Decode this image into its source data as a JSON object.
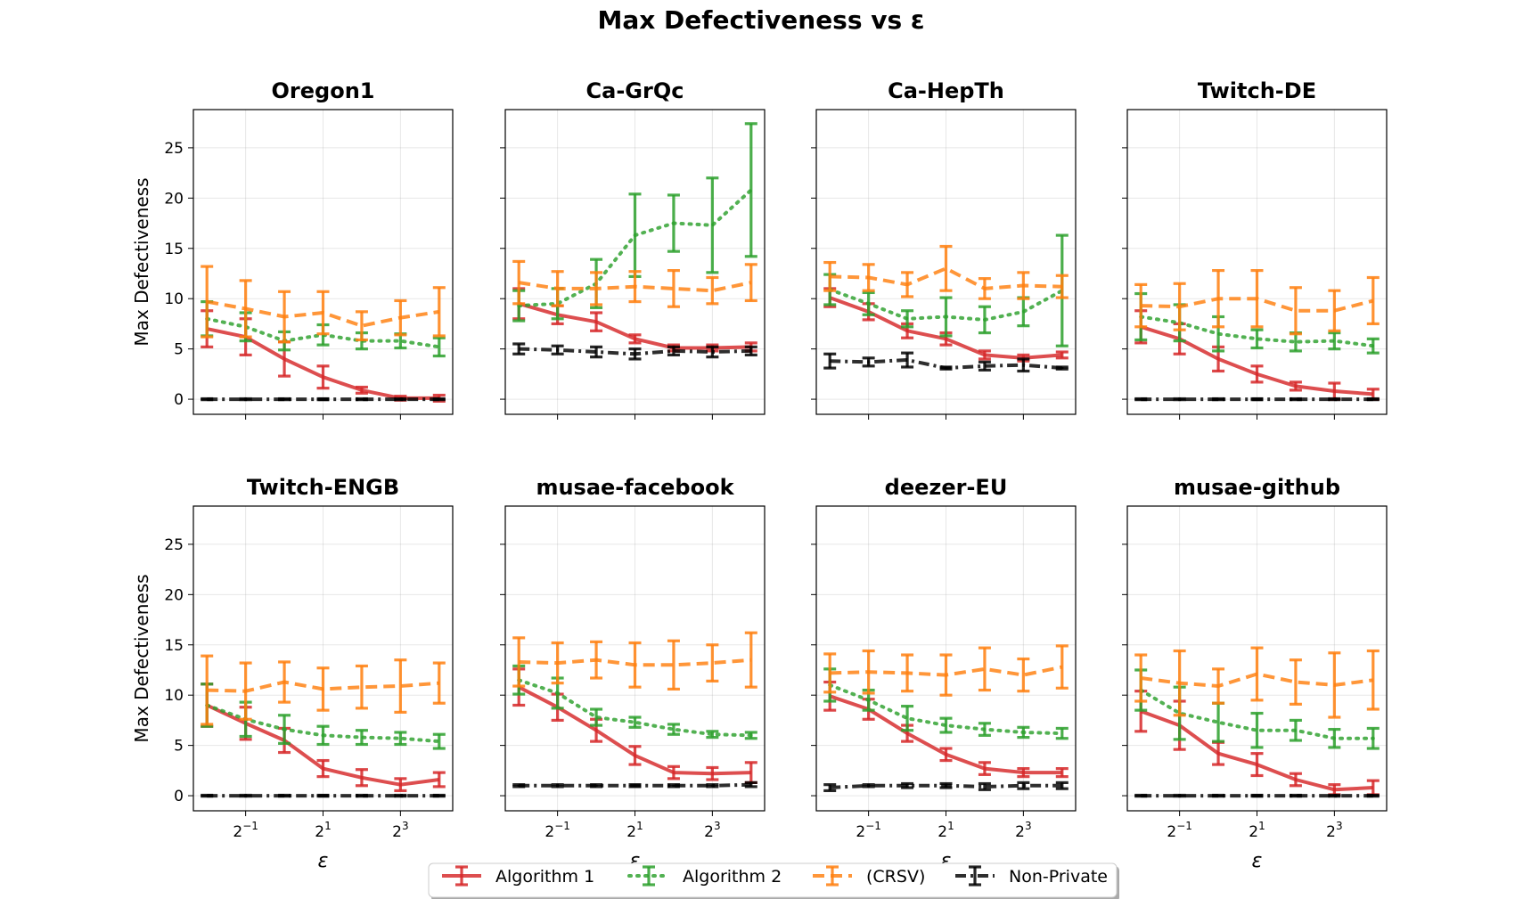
{
  "figure_title": "Max Defectiveness vs ε",
  "chart_data": {
    "type": "line",
    "title": "Max Defectiveness vs ε",
    "xlabel": "ε",
    "ylabel": "Max Defectiveness",
    "x": [
      0.25,
      0.5,
      1,
      2,
      4,
      8,
      16
    ],
    "x_scale": "log2",
    "xticks": [
      {
        "base": "2",
        "exp": "−1",
        "value": 0.5
      },
      {
        "base": "2",
        "exp": "1",
        "value": 2
      },
      {
        "base": "2",
        "exp": "3",
        "value": 8
      }
    ],
    "yticks": [
      "0",
      "5",
      "10",
      "15",
      "20",
      "25"
    ],
    "ylim": [
      -1.5,
      28.8
    ],
    "grid": true,
    "legend_position": "bottom-center",
    "series_styles": [
      {
        "name": "Algorithm 1",
        "color": "#d62728",
        "dash": ""
      },
      {
        "name": "Algorithm 2",
        "color": "#2ca02c",
        "dash": "dot"
      },
      {
        "name": "(CRSV)",
        "color": "#ff7f0e",
        "dash": "dash"
      },
      {
        "name": "Non-Private",
        "color": "#000000",
        "dash": "dashdot"
      }
    ],
    "panels": [
      {
        "title": "Oregon1",
        "series": [
          {
            "name": "Algorithm 1",
            "values": [
              7.0,
              6.2,
              4.0,
              2.2,
              0.9,
              0.1,
              0.1
            ],
            "err": [
              1.8,
              1.8,
              1.7,
              1.1,
              0.3,
              0.2,
              0.3
            ]
          },
          {
            "name": "Algorithm 2",
            "values": [
              8.0,
              7.2,
              5.8,
              6.4,
              5.8,
              5.8,
              5.2
            ],
            "err": [
              1.7,
              1.4,
              0.9,
              1.0,
              0.8,
              0.7,
              0.9
            ]
          },
          {
            "name": "(CRSV)",
            "values": [
              9.7,
              9.0,
              8.2,
              8.6,
              7.3,
              8.1,
              8.7
            ],
            "err": [
              3.5,
              2.8,
              2.5,
              2.1,
              1.4,
              1.7,
              2.4
            ]
          },
          {
            "name": "Non-Private",
            "values": [
              0,
              0,
              0,
              0,
              0,
              0,
              0
            ],
            "err": [
              0.05,
              0.05,
              0.05,
              0.05,
              0.05,
              0.05,
              0.05
            ]
          }
        ]
      },
      {
        "title": "Ca-GrQc",
        "series": [
          {
            "name": "Algorithm 1",
            "values": [
              9.5,
              8.4,
              7.7,
              6.0,
              5.1,
              5.1,
              5.2
            ],
            "err": [
              1.5,
              0.9,
              0.9,
              0.4,
              0.3,
              0.3,
              0.4
            ]
          },
          {
            "name": "Algorithm 2",
            "values": [
              9.3,
              9.5,
              11.5,
              16.3,
              17.5,
              17.3,
              20.8
            ],
            "err": [
              1.5,
              1.5,
              2.4,
              4.1,
              2.8,
              4.7,
              6.6
            ]
          },
          {
            "name": "(CRSV)",
            "values": [
              11.6,
              11.0,
              11.0,
              11.2,
              11.0,
              10.8,
              11.6
            ],
            "err": [
              2.1,
              1.7,
              1.6,
              1.5,
              1.8,
              1.3,
              1.8
            ]
          },
          {
            "name": "Non-Private",
            "values": [
              5.0,
              4.9,
              4.7,
              4.5,
              4.8,
              4.7,
              4.8
            ],
            "err": [
              0.5,
              0.4,
              0.5,
              0.5,
              0.4,
              0.5,
              0.4
            ]
          }
        ]
      },
      {
        "title": "Ca-HepTh",
        "series": [
          {
            "name": "Algorithm 1",
            "values": [
              10.1,
              8.7,
              6.8,
              6.0,
              4.4,
              4.1,
              4.4
            ],
            "err": [
              0.9,
              0.8,
              0.7,
              0.6,
              0.4,
              0.3,
              0.3
            ]
          },
          {
            "name": "Algorithm 2",
            "values": [
              10.9,
              9.5,
              8.0,
              8.2,
              7.9,
              8.7,
              10.8
            ],
            "err": [
              1.5,
              1.1,
              0.8,
              1.9,
              1.3,
              1.4,
              5.5
            ]
          },
          {
            "name": "(CRSV)",
            "values": [
              12.2,
              12.1,
              11.4,
              13.0,
              11.0,
              11.3,
              11.2
            ],
            "err": [
              1.4,
              1.3,
              1.2,
              2.2,
              1.0,
              1.3,
              1.1
            ]
          },
          {
            "name": "Non-Private",
            "values": [
              3.8,
              3.7,
              3.9,
              3.1,
              3.3,
              3.4,
              3.1
            ],
            "err": [
              0.7,
              0.4,
              0.7,
              0.1,
              0.4,
              0.6,
              0.1
            ]
          }
        ]
      },
      {
        "title": "Twitch-DE",
        "series": [
          {
            "name": "Algorithm 1",
            "values": [
              7.2,
              6.0,
              4.0,
              2.5,
              1.3,
              0.8,
              0.5
            ],
            "err": [
              1.6,
              1.5,
              1.2,
              0.8,
              0.4,
              0.8,
              0.5
            ]
          },
          {
            "name": "Algorithm 2",
            "values": [
              8.2,
              7.6,
              6.5,
              6.0,
              5.7,
              5.8,
              5.3
            ],
            "err": [
              2.3,
              1.8,
              1.7,
              0.9,
              0.9,
              0.8,
              0.7
            ]
          },
          {
            "name": "(CRSV)",
            "values": [
              9.3,
              9.2,
              10.0,
              10.0,
              8.8,
              8.8,
              9.8
            ],
            "err": [
              2.1,
              2.3,
              2.8,
              2.8,
              2.3,
              2.0,
              2.3
            ]
          },
          {
            "name": "Non-Private",
            "values": [
              0,
              0,
              0,
              0,
              0,
              0,
              0
            ],
            "err": [
              0.05,
              0.05,
              0.05,
              0.05,
              0.05,
              0.05,
              0.05
            ]
          }
        ]
      },
      {
        "title": "Twitch-ENGB",
        "series": [
          {
            "name": "Algorithm 1",
            "values": [
              9.0,
              7.2,
              5.5,
              2.7,
              1.8,
              1.1,
              1.6
            ],
            "err": [
              2.1,
              1.6,
              1.2,
              0.8,
              0.8,
              0.6,
              0.7
            ]
          },
          {
            "name": "Algorithm 2",
            "values": [
              9.0,
              7.6,
              6.6,
              6.0,
              5.8,
              5.7,
              5.4
            ],
            "err": [
              2.1,
              1.7,
              1.4,
              0.9,
              0.7,
              0.6,
              0.7
            ]
          },
          {
            "name": "(CRSV)",
            "values": [
              10.5,
              10.4,
              11.3,
              10.6,
              10.8,
              10.9,
              11.2
            ],
            "err": [
              3.4,
              2.8,
              2.0,
              2.1,
              2.1,
              2.6,
              2.0
            ]
          },
          {
            "name": "Non-Private",
            "values": [
              0,
              0,
              0,
              0,
              0,
              0,
              0
            ],
            "err": [
              0.05,
              0.05,
              0.05,
              0.05,
              0.05,
              0.05,
              0.05
            ]
          }
        ]
      },
      {
        "title": "musae-facebook",
        "series": [
          {
            "name": "Algorithm 1",
            "values": [
              10.8,
              8.8,
              6.5,
              4.0,
              2.3,
              2.2,
              2.3
            ],
            "err": [
              1.8,
              1.3,
              1.1,
              0.9,
              0.6,
              0.6,
              1.0
            ]
          },
          {
            "name": "Algorithm 2",
            "values": [
              11.5,
              10.2,
              7.8,
              7.3,
              6.6,
              6.1,
              6.0
            ],
            "err": [
              1.4,
              1.5,
              0.8,
              0.5,
              0.5,
              0.3,
              0.3
            ]
          },
          {
            "name": "(CRSV)",
            "values": [
              13.3,
              13.2,
              13.5,
              13.0,
              13.0,
              13.2,
              13.5
            ],
            "err": [
              2.4,
              2.0,
              1.8,
              2.2,
              2.4,
              1.8,
              2.7
            ]
          },
          {
            "name": "Non-Private",
            "values": [
              1.0,
              1.0,
              1.0,
              1.0,
              1.0,
              1.0,
              1.1
            ],
            "err": [
              0.1,
              0.1,
              0.1,
              0.1,
              0.1,
              0.1,
              0.2
            ]
          }
        ]
      },
      {
        "title": "deezer-EU",
        "series": [
          {
            "name": "Algorithm 1",
            "values": [
              9.9,
              8.6,
              6.2,
              4.1,
              2.7,
              2.3,
              2.3
            ],
            "err": [
              1.4,
              1.0,
              0.8,
              0.6,
              0.6,
              0.4,
              0.4
            ]
          },
          {
            "name": "Algorithm 2",
            "values": [
              11.0,
              9.5,
              7.7,
              7.0,
              6.6,
              6.3,
              6.2
            ],
            "err": [
              1.6,
              1.0,
              1.2,
              0.7,
              0.6,
              0.5,
              0.5
            ]
          },
          {
            "name": "(CRSV)",
            "values": [
              12.2,
              12.3,
              12.2,
              12.0,
              12.6,
              12.0,
              12.8
            ],
            "err": [
              1.9,
              2.1,
              1.8,
              2.0,
              2.1,
              1.6,
              2.1
            ]
          },
          {
            "name": "Non-Private",
            "values": [
              0.8,
              1.0,
              1.0,
              1.0,
              0.9,
              1.0,
              1.0
            ],
            "err": [
              0.3,
              0.1,
              0.2,
              0.2,
              0.3,
              0.3,
              0.3
            ]
          }
        ]
      },
      {
        "title": "musae-github",
        "series": [
          {
            "name": "Algorithm 1",
            "values": [
              8.4,
              7.0,
              4.2,
              3.1,
              1.6,
              0.6,
              0.8
            ],
            "err": [
              2.0,
              2.4,
              1.1,
              1.1,
              0.6,
              0.5,
              0.7
            ]
          },
          {
            "name": "Algorithm 2",
            "values": [
              10.5,
              8.2,
              7.3,
              6.5,
              6.5,
              5.7,
              5.7
            ],
            "err": [
              2.0,
              2.6,
              1.9,
              1.7,
              1.0,
              0.9,
              1.0
            ]
          },
          {
            "name": "(CRSV)",
            "values": [
              11.7,
              11.2,
              10.9,
              12.1,
              11.3,
              11.0,
              11.5
            ],
            "err": [
              2.3,
              3.2,
              1.7,
              2.6,
              2.2,
              3.2,
              2.9
            ]
          },
          {
            "name": "Non-Private",
            "values": [
              0,
              0,
              0,
              0,
              0,
              0,
              0
            ],
            "err": [
              0.05,
              0.05,
              0.05,
              0.05,
              0.05,
              0.05,
              0.05
            ]
          }
        ]
      }
    ]
  }
}
